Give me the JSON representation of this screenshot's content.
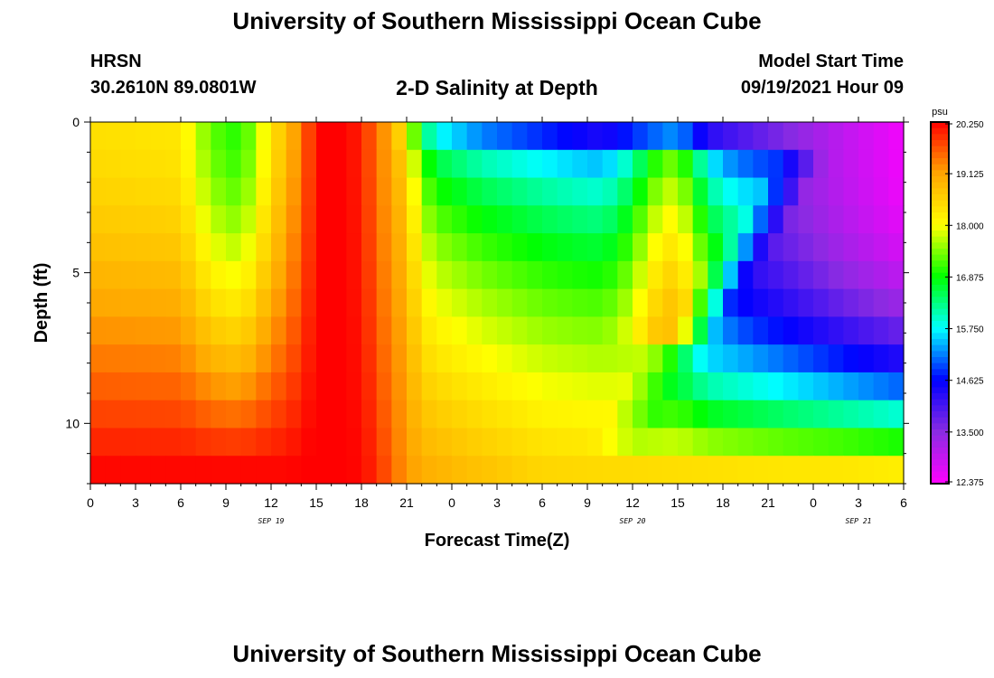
{
  "header": {
    "title": "University of Southern Mississippi Ocean Cube",
    "station": "HRSN",
    "coordinates": "30.2610N  89.0801W",
    "subtitle": "2-D Salinity at Depth",
    "model_start_label": "Model Start Time",
    "model_start_value": "09/19/2021 Hour 09"
  },
  "footer": {
    "title": "University of Southern Mississippi Ocean Cube"
  },
  "chart_data": {
    "type": "heatmap",
    "title": "2-D Salinity at Depth",
    "xlabel": "Forecast Time(Z)",
    "ylabel": "Depth (ft)",
    "x_tick_labels": [
      "0",
      "3",
      "6",
      "9",
      "12",
      "15",
      "18",
      "21",
      "0",
      "3",
      "6",
      "9",
      "12",
      "15",
      "18",
      "21",
      "0",
      "3",
      "6"
    ],
    "x_date_labels": [
      {
        "label": "SEP 19",
        "tick_index": 4
      },
      {
        "label": "SEP 20",
        "tick_index": 12
      },
      {
        "label": "SEP 21",
        "tick_index": 17
      }
    ],
    "x_range_hours": [
      0,
      54
    ],
    "y_range_ft": [
      0,
      12
    ],
    "y_tick_labels": [
      {
        "label": "0",
        "value": 0
      },
      {
        "label": "5",
        "value": 5
      },
      {
        "label": "10",
        "value": 10
      }
    ],
    "colorbar": {
      "unit": "psu",
      "min": 12.375,
      "max": 20.25,
      "tick_labels": [
        "20.250",
        "19.125",
        "18.000",
        "16.875",
        "15.750",
        "14.625",
        "13.500",
        "12.375"
      ],
      "colors": [
        "#ff00ff",
        "#8a2be2",
        "#0000ff",
        "#00ffff",
        "#00ff00",
        "#ffff00",
        "#ffa500",
        "#ff0000"
      ]
    },
    "depth_levels_ft": [
      0,
      1,
      2,
      3,
      4,
      5,
      6,
      7,
      8,
      9,
      10,
      11,
      12
    ],
    "surface_profile_anchors_psu": [
      [
        0,
        18.4
      ],
      [
        6,
        18.3
      ],
      [
        8,
        17.3
      ],
      [
        10,
        17.0
      ],
      [
        12,
        18.3
      ],
      [
        14,
        19.4
      ],
      [
        15,
        20.2
      ],
      [
        16,
        20.5
      ],
      [
        18,
        20.0
      ],
      [
        20,
        19.0
      ],
      [
        21,
        18.2
      ],
      [
        22,
        16.5
      ],
      [
        23,
        15.8
      ],
      [
        26,
        15.2
      ],
      [
        30,
        14.8
      ],
      [
        34,
        14.4
      ],
      [
        37,
        15.0
      ],
      [
        39,
        15.3
      ],
      [
        41,
        14.3
      ],
      [
        46,
        13.6
      ],
      [
        50,
        13.0
      ],
      [
        54,
        12.5
      ]
    ],
    "bottom_profile_anchors_psu": [
      [
        0,
        20.2
      ],
      [
        13,
        20.2
      ],
      [
        15,
        20.3
      ],
      [
        17,
        20.3
      ],
      [
        19,
        20.0
      ],
      [
        20,
        19.5
      ],
      [
        22,
        19.0
      ],
      [
        30,
        18.5
      ],
      [
        40,
        18.4
      ],
      [
        46,
        18.3
      ],
      [
        50,
        18.3
      ],
      [
        54,
        18.2
      ]
    ],
    "mid_depth_front": {
      "start_hour": 20,
      "shallow_extent_hour": 32,
      "deep_extent_hour": 47
    },
    "mid_depth_bump": {
      "center_hour": 38.5,
      "width_hours": 2.5,
      "amplitude_psu": 1.3,
      "depth_range_ft": [
        1,
        7
      ]
    }
  }
}
